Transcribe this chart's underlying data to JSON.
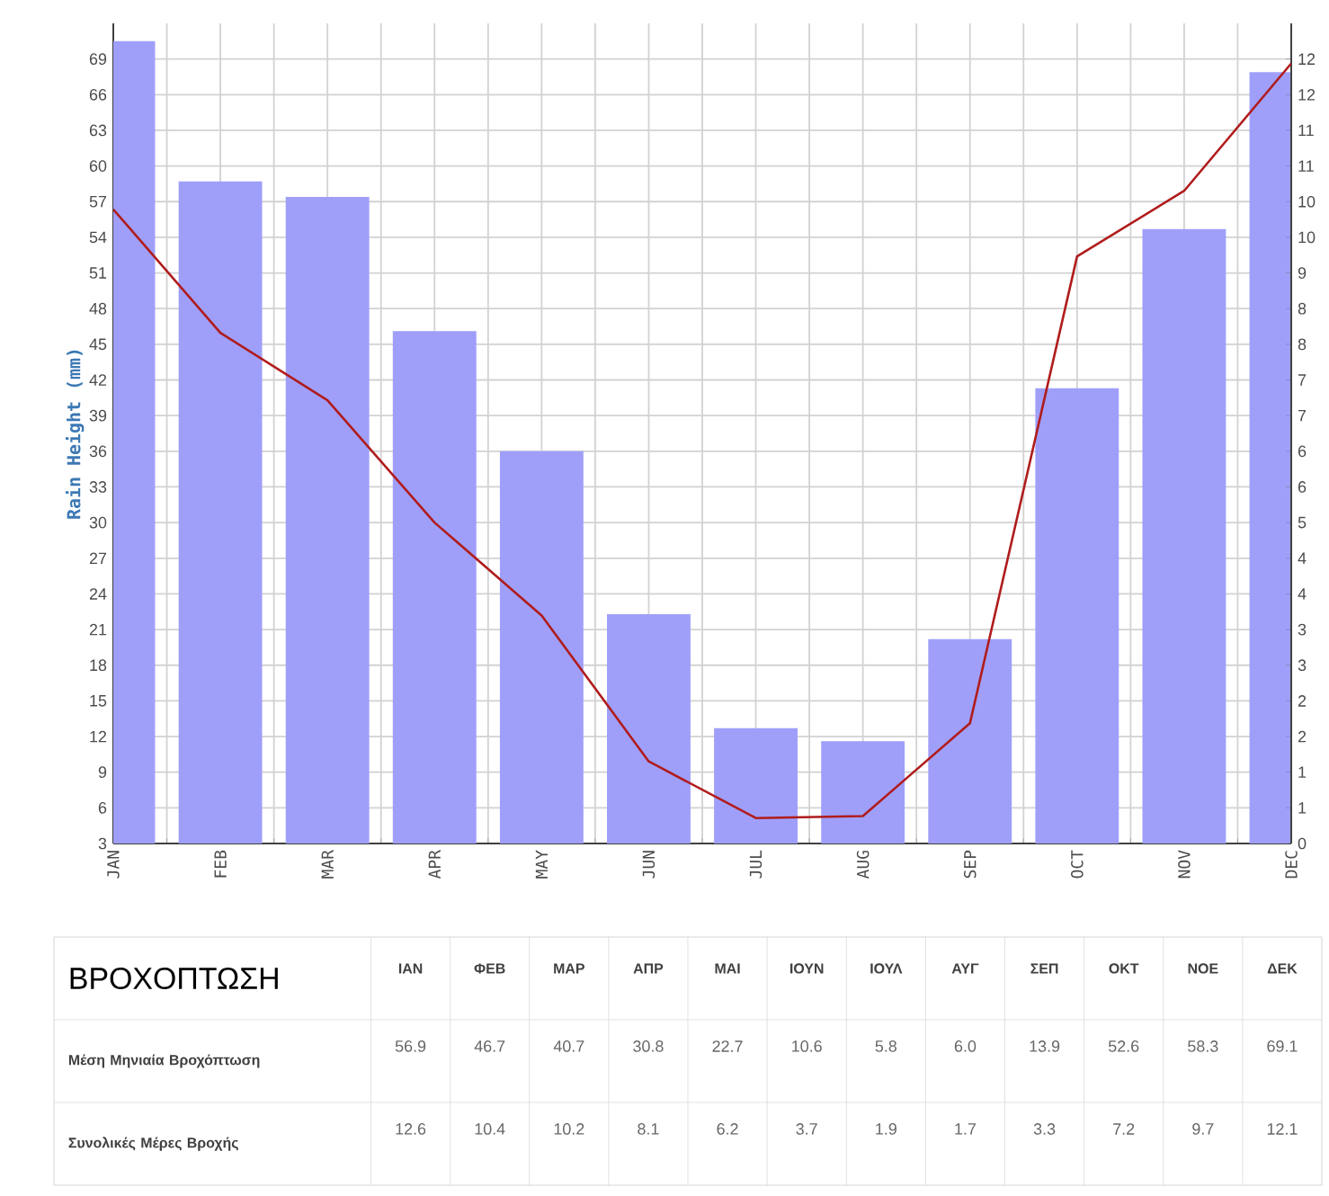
{
  "chart_data": [
    {
      "type": "bar",
      "ylabel": "Rain Height (mm)",
      "categories": [
        "JAN",
        "FEB",
        "MAR",
        "APR",
        "MAY",
        "JUN",
        "JUL",
        "AUG",
        "SEP",
        "OCT",
        "NOV",
        "DEC"
      ],
      "series": [
        {
          "type": "bar",
          "color": "#9f9ffa",
          "values": [
            70.5,
            58.7,
            57.4,
            46.1,
            36.0,
            22.3,
            12.7,
            11.6,
            20.2,
            41.3,
            54.7,
            67.9
          ]
        },
        {
          "type": "line",
          "axis": "y2",
          "color": "#b01c1c",
          "marker": "none",
          "values": [
            9.96,
            8.02,
            6.96,
            5.04,
            3.58,
            1.29,
            0.4,
            0.43,
            1.89,
            9.22,
            10.25,
            12.25
          ]
        }
      ],
      "ylim": [
        3,
        72
      ],
      "yticks": [
        3,
        6,
        9,
        12,
        15,
        18,
        21,
        24,
        27,
        30,
        33,
        36,
        39,
        42,
        45,
        48,
        51,
        54,
        57,
        60,
        63,
        66,
        69
      ],
      "y2lim": [
        0,
        12.88
      ],
      "y2ticks": [
        {
          "value": 0,
          "label": "0"
        },
        {
          "value": 0.56,
          "label": "1"
        },
        {
          "value": 1.12,
          "label": "1"
        },
        {
          "value": 1.68,
          "label": "2"
        },
        {
          "value": 2.24,
          "label": "2"
        },
        {
          "value": 2.8,
          "label": "3"
        },
        {
          "value": 3.36,
          "label": "3"
        },
        {
          "value": 3.92,
          "label": "4"
        },
        {
          "value": 4.48,
          "label": "4"
        },
        {
          "value": 5.04,
          "label": "5"
        },
        {
          "value": 5.6,
          "label": "6"
        },
        {
          "value": 6.16,
          "label": "6"
        },
        {
          "value": 6.72,
          "label": "7"
        },
        {
          "value": 7.28,
          "label": "7"
        },
        {
          "value": 7.84,
          "label": "8"
        },
        {
          "value": 8.4,
          "label": "8"
        },
        {
          "value": 8.96,
          "label": "9"
        },
        {
          "value": 9.52,
          "label": "10"
        },
        {
          "value": 10.08,
          "label": "10"
        },
        {
          "value": 10.64,
          "label": "11"
        },
        {
          "value": 11.2,
          "label": "11"
        },
        {
          "value": 11.76,
          "label": "12"
        },
        {
          "value": 12.32,
          "label": "12"
        }
      ],
      "grid": true
    },
    {
      "type": "other",
      "title": "ΒΡΟΧΟΠΤΩΣΗ",
      "categories": [
        "ΙΑΝ",
        "ΦΕΒ",
        "ΜΑΡ",
        "ΑΠΡ",
        "ΜΑΙ",
        "ΙΟΥΝ",
        "ΙΟΥΛ",
        "ΑΥΓ",
        "ΣΕΠ",
        "ΟΚΤ",
        "ΝΟΕ",
        "ΔΕΚ"
      ],
      "series": [
        {
          "name": "Μέση Μηνιαία Βροχόπτωση",
          "values": [
            56.9,
            46.7,
            40.7,
            30.8,
            22.7,
            10.6,
            5.8,
            6.0,
            13.9,
            52.6,
            58.3,
            69.1
          ],
          "value_labels": [
            "56.9",
            "46.7",
            "40.7",
            "30.8",
            "22.7",
            "10.6",
            "5.8",
            "6.0",
            "13.9",
            "52.6",
            "58.3",
            "69.1"
          ]
        },
        {
          "name": "Συνολικές Μέρες Βροχής",
          "values": [
            12.6,
            10.4,
            10.2,
            8.1,
            6.2,
            3.7,
            1.9,
            1.7,
            3.3,
            7.2,
            9.7,
            12.1
          ],
          "value_labels": [
            "12.6",
            "10.4",
            "10.2",
            "8.1",
            "6.2",
            "3.7",
            "1.9",
            "1.7",
            "3.3",
            "7.2",
            "9.7",
            "12.1"
          ]
        }
      ]
    }
  ]
}
